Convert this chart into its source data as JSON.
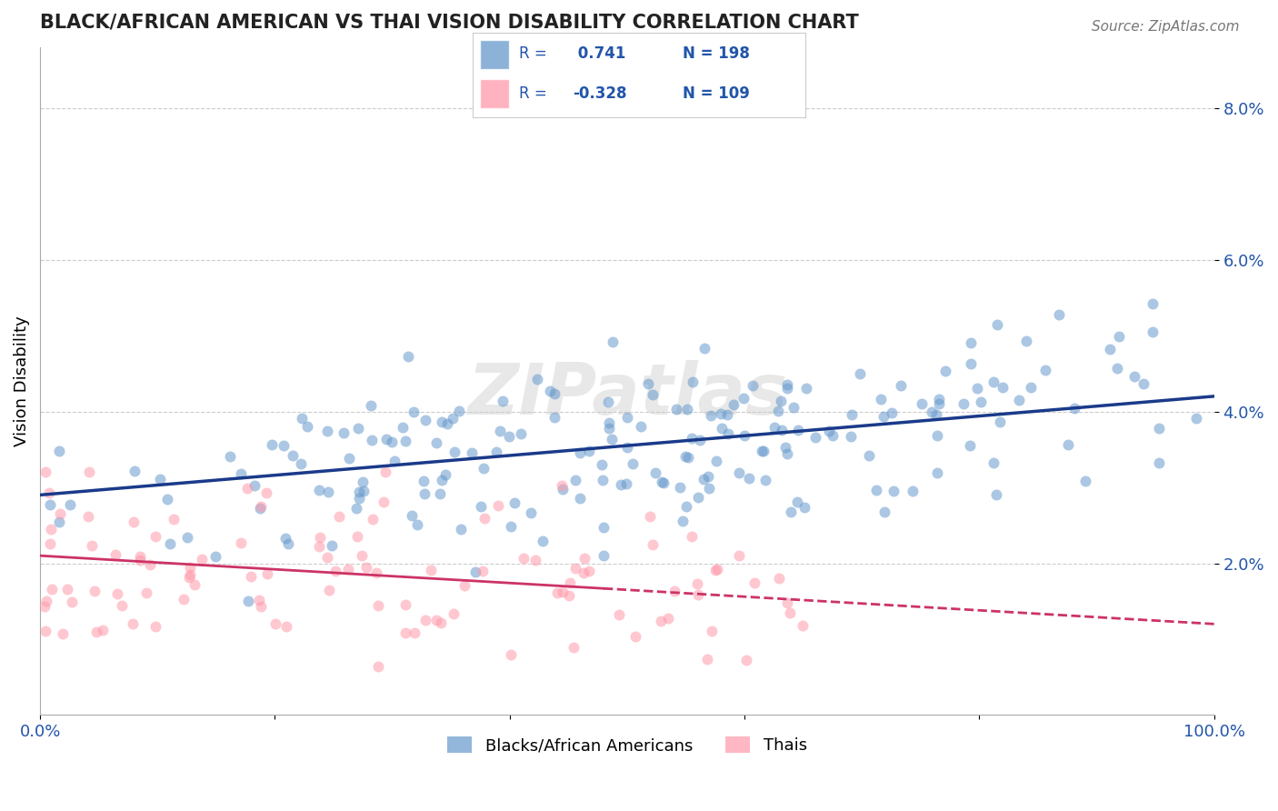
{
  "title": "BLACK/AFRICAN AMERICAN VS THAI VISION DISABILITY CORRELATION CHART",
  "source": "Source: ZipAtlas.com",
  "ylabel": "Vision Disability",
  "ytick_labels": [
    "2.0%",
    "4.0%",
    "6.0%",
    "8.0%"
  ],
  "ytick_values": [
    0.02,
    0.04,
    0.06,
    0.08
  ],
  "xlim": [
    0.0,
    1.0
  ],
  "ylim": [
    0.0,
    0.088
  ],
  "blue_R": 0.741,
  "blue_N": 198,
  "pink_R": -0.328,
  "pink_N": 109,
  "blue_color": "#6699CC",
  "blue_line_color": "#1a3a8a",
  "pink_color": "#FF99AA",
  "pink_line_color": "#CC3366",
  "watermark": "ZIPatlas",
  "legend_label_blue": "Blacks/African Americans",
  "legend_label_pink": "Thais",
  "blue_intercept": 0.029,
  "blue_slope": 0.013,
  "pink_intercept": 0.021,
  "pink_slope": -0.009
}
